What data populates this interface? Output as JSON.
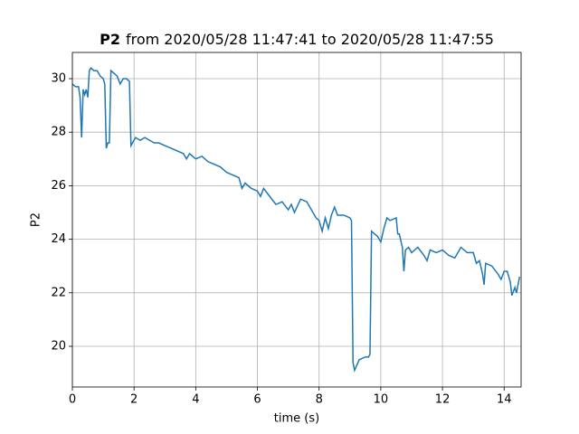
{
  "chart_data": {
    "type": "line",
    "title_bold": "P2",
    "title": "from 2020/05/28 11:47:41 to 2020/05/28 11:47:55",
    "xlabel": "time (s)",
    "ylabel": "P2",
    "xlim": [
      0,
      14.55
    ],
    "ylim": [
      18.48,
      30.98
    ],
    "xticks": [
      0,
      2,
      4,
      6,
      8,
      10,
      12,
      14
    ],
    "yticks": [
      20,
      22,
      24,
      26,
      28,
      30
    ],
    "grid": true,
    "series": [
      {
        "name": "P2",
        "color": "#1f77b4",
        "x": [
          0,
          0.1,
          0.2,
          0.25,
          0.3,
          0.35,
          0.4,
          0.45,
          0.5,
          0.55,
          0.6,
          0.7,
          0.8,
          0.9,
          1.0,
          1.05,
          1.1,
          1.15,
          1.2,
          1.25,
          1.35,
          1.45,
          1.55,
          1.65,
          1.75,
          1.85,
          1.9,
          1.95,
          2.05,
          2.2,
          2.35,
          2.5,
          2.65,
          2.8,
          3.0,
          3.2,
          3.4,
          3.6,
          3.7,
          3.8,
          4.0,
          4.2,
          4.4,
          4.6,
          4.8,
          5.0,
          5.2,
          5.4,
          5.5,
          5.6,
          5.8,
          6.0,
          6.1,
          6.2,
          6.4,
          6.6,
          6.8,
          7.0,
          7.1,
          7.2,
          7.4,
          7.6,
          7.8,
          7.9,
          8.0,
          8.1,
          8.2,
          8.3,
          8.4,
          8.5,
          8.6,
          8.8,
          9.0,
          9.05,
          9.1,
          9.15,
          9.3,
          9.5,
          9.6,
          9.65,
          9.7,
          9.8,
          9.9,
          10.0,
          10.1,
          10.2,
          10.3,
          10.5,
          10.55,
          10.6,
          10.7,
          10.75,
          10.8,
          10.9,
          11.0,
          11.2,
          11.4,
          11.5,
          11.6,
          11.8,
          12.0,
          12.2,
          12.4,
          12.6,
          12.8,
          13.0,
          13.1,
          13.2,
          13.3,
          13.35,
          13.4,
          13.6,
          13.8,
          13.9,
          14.0,
          14.1,
          14.2,
          14.25,
          14.35,
          14.4,
          14.5
        ],
        "values": [
          29.8,
          29.7,
          29.7,
          29.3,
          27.8,
          29.6,
          29.4,
          29.6,
          29.3,
          30.3,
          30.4,
          30.3,
          30.3,
          30.1,
          30.0,
          29.8,
          27.4,
          27.6,
          27.6,
          30.3,
          30.2,
          30.1,
          29.8,
          30.0,
          30.0,
          29.9,
          27.5,
          27.6,
          27.8,
          27.7,
          27.8,
          27.7,
          27.6,
          27.6,
          27.5,
          27.4,
          27.3,
          27.2,
          27.0,
          27.2,
          27.0,
          27.1,
          26.9,
          26.8,
          26.7,
          26.5,
          26.4,
          26.3,
          25.9,
          26.1,
          25.9,
          25.8,
          25.6,
          25.9,
          25.6,
          25.3,
          25.4,
          25.1,
          25.3,
          25.0,
          25.5,
          25.4,
          25.0,
          24.8,
          24.7,
          24.3,
          24.8,
          24.4,
          24.9,
          25.2,
          24.9,
          24.9,
          24.8,
          24.7,
          19.4,
          19.1,
          19.5,
          19.6,
          19.6,
          19.7,
          24.3,
          24.2,
          24.1,
          23.9,
          24.4,
          24.8,
          24.7,
          24.8,
          24.2,
          24.2,
          23.7,
          22.8,
          23.6,
          23.7,
          23.5,
          23.7,
          23.4,
          23.2,
          23.6,
          23.5,
          23.6,
          23.4,
          23.3,
          23.7,
          23.5,
          23.5,
          23.1,
          23.2,
          22.7,
          22.3,
          23.1,
          23.0,
          22.7,
          22.5,
          22.8,
          22.8,
          22.4,
          21.9,
          22.2,
          22.0,
          22.6
        ]
      }
    ]
  }
}
